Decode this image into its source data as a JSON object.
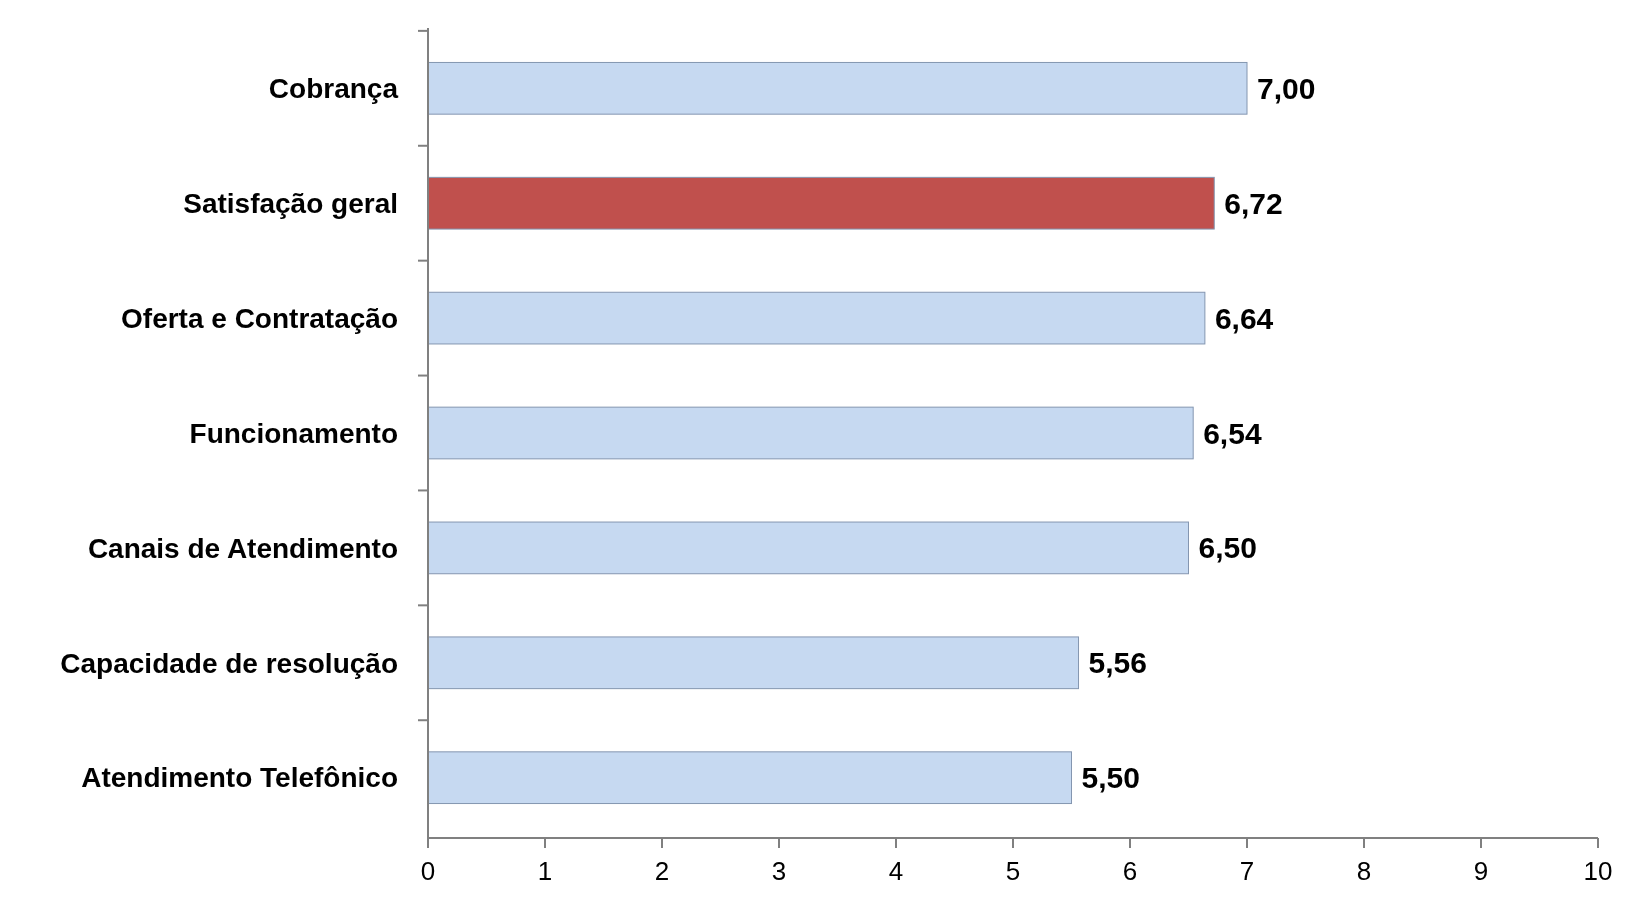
{
  "chart_data": {
    "type": "bar",
    "orientation": "horizontal",
    "categories": [
      "Cobrança",
      "Satisfação geral",
      "Oferta e Contratação",
      "Funcionamento",
      "Canais de Atendimento",
      "Capacidade de resolução",
      "Atendimento Telefônico"
    ],
    "values": [
      7.0,
      6.72,
      6.64,
      6.54,
      6.5,
      5.56,
      5.5
    ],
    "value_labels": [
      "7,00",
      "6,72",
      "6,64",
      "6,54",
      "6,50",
      "5,56",
      "5,50"
    ],
    "colors": [
      "#c6d9f1",
      "#c0504d",
      "#c6d9f1",
      "#c6d9f1",
      "#c6d9f1",
      "#c6d9f1",
      "#c6d9f1"
    ],
    "xlim": [
      0,
      10
    ],
    "xticks": [
      0,
      1,
      2,
      3,
      4,
      5,
      6,
      7,
      8,
      9,
      10
    ]
  }
}
